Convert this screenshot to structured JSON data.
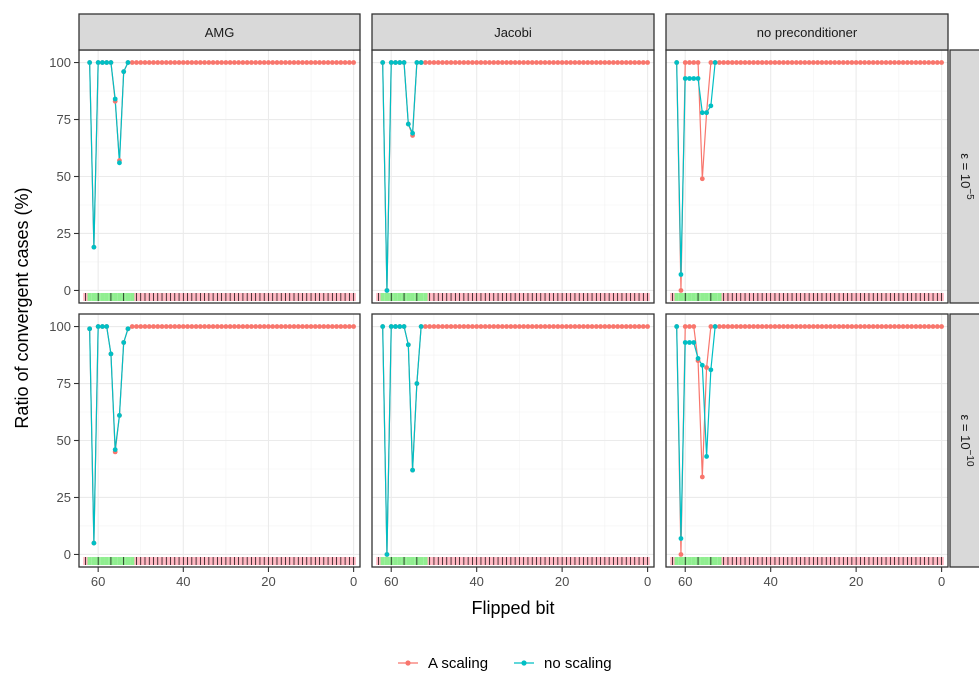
{
  "chart_data": {
    "type": "line",
    "xlabel": "Flipped bit",
    "ylabel": "Ratio of convergent cases (%)",
    "xlim": [
      63,
      0
    ],
    "ylim": [
      0,
      100
    ],
    "x_ticks": [
      60,
      40,
      20,
      0
    ],
    "y_ticks": [
      0,
      25,
      50,
      75,
      100
    ],
    "x_reversed": true,
    "grid": true,
    "legend_position": "bottom",
    "columns": [
      "AMG",
      "Jacobi",
      "no preconditioner"
    ],
    "rows": [
      {
        "prefix": "ε = 10",
        "exp": "−5"
      },
      {
        "prefix": "ε = 10",
        "exp": "−10"
      }
    ],
    "series": [
      {
        "name": "A scaling",
        "color": "#F8766D"
      },
      {
        "name": "no scaling",
        "color": "#00BFC4"
      }
    ],
    "rug": {
      "green_bits": [
        62,
        61,
        60,
        59,
        58,
        57,
        56,
        55,
        54,
        53,
        52
      ],
      "green_color": "#90EE90",
      "red_color": "#FFB6C1",
      "tick_color": "#000000"
    },
    "panels": [
      {
        "row": 0,
        "col": 0,
        "a_scaling": [
          [
            62,
            100
          ],
          [
            61,
            19
          ],
          [
            60,
            100
          ],
          [
            59,
            100
          ],
          [
            58,
            100
          ],
          [
            57,
            100
          ],
          [
            56,
            83
          ],
          [
            55,
            57
          ],
          [
            54,
            96
          ],
          [
            53,
            100
          ]
        ],
        "no_scaling": [
          [
            62,
            100
          ],
          [
            61,
            19
          ],
          [
            60,
            100
          ],
          [
            59,
            100
          ],
          [
            58,
            100
          ],
          [
            57,
            100
          ],
          [
            56,
            84
          ],
          [
            55,
            56
          ],
          [
            54,
            96
          ],
          [
            53,
            100
          ]
        ]
      },
      {
        "row": 0,
        "col": 1,
        "a_scaling": [
          [
            62,
            100
          ],
          [
            61,
            0
          ],
          [
            60,
            100
          ],
          [
            59,
            100
          ],
          [
            58,
            100
          ],
          [
            57,
            100
          ],
          [
            56,
            73
          ],
          [
            55,
            68
          ],
          [
            54,
            100
          ]
        ],
        "no_scaling": [
          [
            62,
            100
          ],
          [
            61,
            0
          ],
          [
            60,
            100
          ],
          [
            59,
            100
          ],
          [
            58,
            100
          ],
          [
            57,
            100
          ],
          [
            56,
            73
          ],
          [
            55,
            69
          ],
          [
            54,
            100
          ]
        ]
      },
      {
        "row": 0,
        "col": 2,
        "a_scaling": [
          [
            62,
            100
          ],
          [
            61,
            0
          ],
          [
            60,
            100
          ],
          [
            59,
            100
          ],
          [
            58,
            100
          ],
          [
            57,
            100
          ],
          [
            56,
            49
          ],
          [
            55,
            78
          ],
          [
            54,
            100
          ]
        ],
        "no_scaling": [
          [
            62,
            100
          ],
          [
            61,
            7
          ],
          [
            60,
            93
          ],
          [
            59,
            93
          ],
          [
            58,
            93
          ],
          [
            57,
            93
          ],
          [
            56,
            78
          ],
          [
            55,
            78
          ],
          [
            54,
            81
          ],
          [
            53,
            100
          ]
        ]
      },
      {
        "row": 1,
        "col": 0,
        "a_scaling": [
          [
            62,
            99
          ],
          [
            61,
            5
          ],
          [
            60,
            100
          ],
          [
            59,
            100
          ],
          [
            58,
            100
          ],
          [
            57,
            88
          ],
          [
            56,
            45
          ],
          [
            55,
            61
          ],
          [
            54,
            93
          ],
          [
            53,
            99
          ],
          [
            52,
            100
          ]
        ],
        "no_scaling": [
          [
            62,
            99
          ],
          [
            61,
            5
          ],
          [
            60,
            100
          ],
          [
            59,
            100
          ],
          [
            58,
            100
          ],
          [
            57,
            88
          ],
          [
            56,
            46
          ],
          [
            55,
            61
          ],
          [
            54,
            93
          ],
          [
            53,
            99
          ],
          [
            52,
            100
          ]
        ]
      },
      {
        "row": 1,
        "col": 1,
        "a_scaling": [
          [
            62,
            100
          ],
          [
            61,
            0
          ],
          [
            60,
            100
          ],
          [
            59,
            100
          ],
          [
            58,
            100
          ],
          [
            57,
            100
          ],
          [
            56,
            92
          ],
          [
            55,
            37
          ],
          [
            54,
            75
          ],
          [
            53,
            100
          ]
        ],
        "no_scaling": [
          [
            62,
            100
          ],
          [
            61,
            0
          ],
          [
            60,
            100
          ],
          [
            59,
            100
          ],
          [
            58,
            100
          ],
          [
            57,
            100
          ],
          [
            56,
            92
          ],
          [
            55,
            37
          ],
          [
            54,
            75
          ],
          [
            53,
            100
          ]
        ]
      },
      {
        "row": 1,
        "col": 2,
        "a_scaling": [
          [
            62,
            100
          ],
          [
            61,
            0
          ],
          [
            60,
            100
          ],
          [
            59,
            100
          ],
          [
            58,
            100
          ],
          [
            57,
            85
          ],
          [
            56,
            34
          ],
          [
            55,
            82
          ],
          [
            54,
            100
          ]
        ],
        "no_scaling": [
          [
            62,
            100
          ],
          [
            61,
            7
          ],
          [
            60,
            93
          ],
          [
            59,
            93
          ],
          [
            58,
            93
          ],
          [
            57,
            86
          ],
          [
            56,
            83
          ],
          [
            55,
            43
          ],
          [
            54,
            81
          ],
          [
            53,
            100
          ]
        ]
      }
    ]
  }
}
